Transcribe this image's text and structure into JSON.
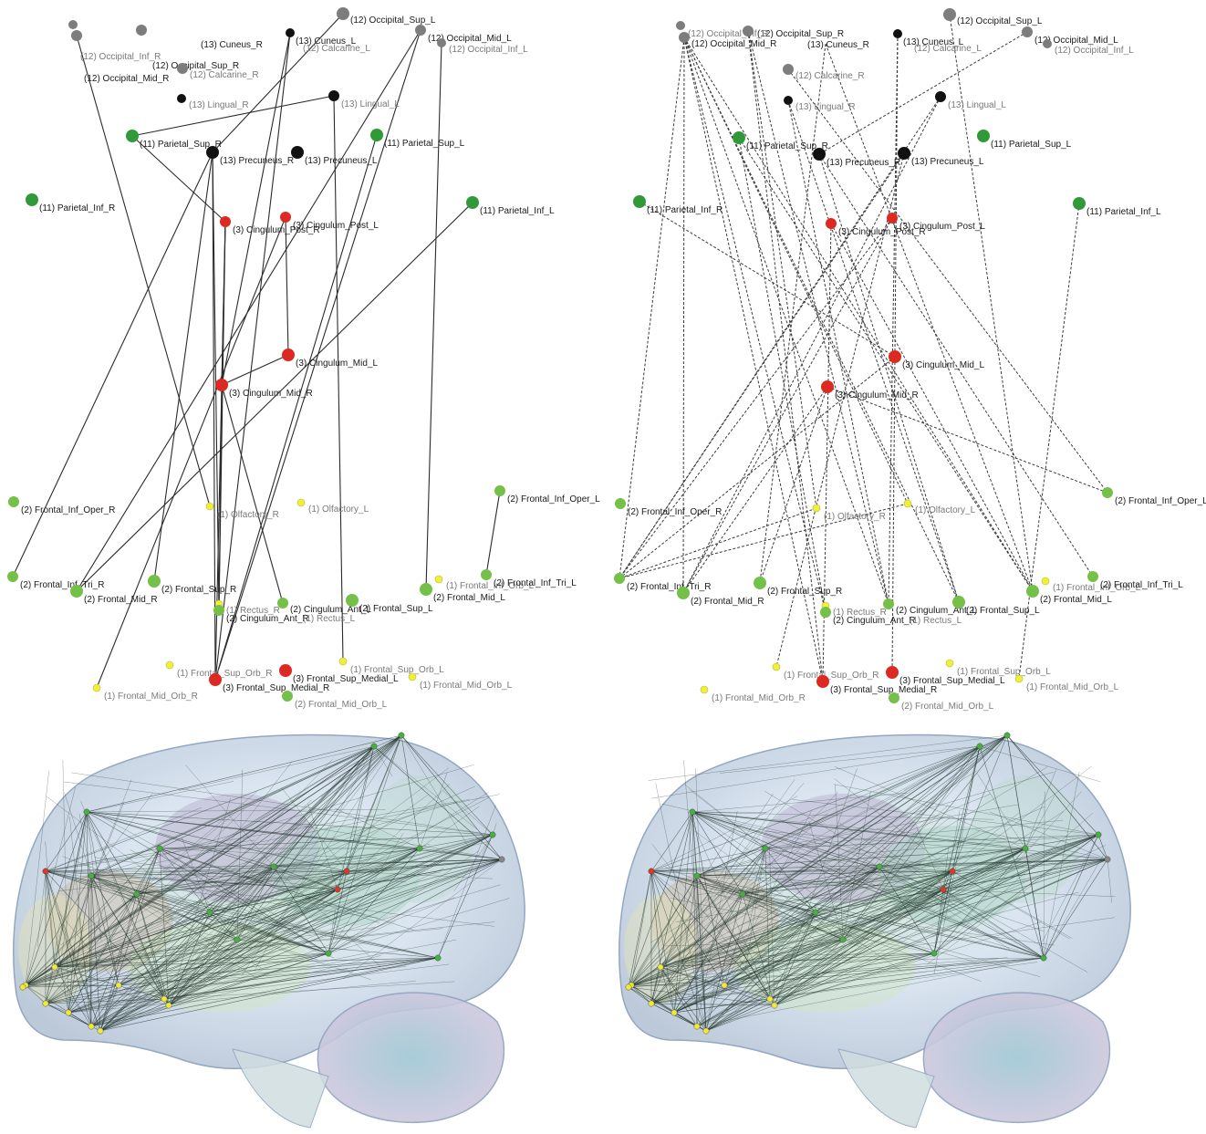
{
  "colors": {
    "occipital": "#7d7d7d",
    "cuneus": "#111111",
    "parietal": "#2f9a37",
    "cingulum": "#dc2a22",
    "frontal": "#74c049",
    "olfactory": "#f2ef3a",
    "edge_solid": "#2b2b2b",
    "edge_dashed": "#3b3b3b"
  },
  "panels": [
    {
      "name": "top-left",
      "edge_style": "solid",
      "nodes": [
        {
          "id": "ocsupR",
          "label": "(12) Occipital_Sup_R",
          "group": "occipital",
          "r": 6,
          "faded": false
        },
        {
          "id": "ocmidR",
          "label": "(12) Occipital_Mid_R",
          "group": "occipital",
          "r": 6,
          "faded": false
        },
        {
          "id": "ocinfR",
          "label": "(12) Occipital_Inf_R",
          "group": "occipital",
          "r": 5,
          "faded": true
        },
        {
          "id": "cunR",
          "label": "(13) Cuneus_R",
          "group": "cuneus",
          "r": 0,
          "faded": false
        },
        {
          "id": "cunL",
          "label": "(13) Cuneus_L",
          "group": "cuneus",
          "r": 5,
          "faded": false
        },
        {
          "id": "calcL",
          "label": "(12) Calcarine_L",
          "group": "occipital",
          "r": 0,
          "faded": true
        },
        {
          "id": "calcR",
          "label": "(12) Calcarine_R",
          "group": "occipital",
          "r": 6,
          "faded": true
        },
        {
          "id": "ocsupL",
          "label": "(12) Occipital_Sup_L",
          "group": "occipital",
          "r": 7,
          "faded": false
        },
        {
          "id": "ocmidL",
          "label": "(12) Occipital_Mid_L",
          "group": "occipital",
          "r": 6,
          "faded": false
        },
        {
          "id": "ocinfL",
          "label": "(12) Occipital_Inf_L",
          "group": "occipital",
          "r": 5,
          "faded": true
        },
        {
          "id": "lingR",
          "label": "(13) Lingual_R",
          "group": "cuneus",
          "r": 5,
          "faded": true
        },
        {
          "id": "lingL",
          "label": "(13) Lingual_L",
          "group": "cuneus",
          "r": 6,
          "faded": true
        },
        {
          "id": "parsupR",
          "label": "(11) Parietal_Sup_R",
          "group": "parietal",
          "r": 7,
          "faded": false
        },
        {
          "id": "precR",
          "label": "(13) Precuneus_R",
          "group": "cuneus",
          "r": 7,
          "faded": false
        },
        {
          "id": "precL",
          "label": "(13) Precuneus_L",
          "group": "cuneus",
          "r": 7,
          "faded": false
        },
        {
          "id": "parsupL",
          "label": "(11) Parietal_Sup_L",
          "group": "parietal",
          "r": 7,
          "faded": false
        },
        {
          "id": "parinfR",
          "label": "(11) Parietal_Inf_R",
          "group": "parietal",
          "r": 7,
          "faded": false
        },
        {
          "id": "parinfL",
          "label": "(11) Parietal_Inf_L",
          "group": "parietal",
          "r": 7,
          "faded": false
        },
        {
          "id": "cpR",
          "label": "(3) Cingulum_Post_R",
          "group": "cingulum",
          "r": 6,
          "faded": false
        },
        {
          "id": "cpL",
          "label": "(3) Cingulum_Post_L",
          "group": "cingulum",
          "r": 6,
          "faded": false
        },
        {
          "id": "cmL",
          "label": "(3) Cingulum_Mid_L",
          "group": "cingulum",
          "r": 7,
          "faded": false
        },
        {
          "id": "cmR",
          "label": "(3) Cingulum_Mid_R",
          "group": "cingulum",
          "r": 7,
          "faded": false
        },
        {
          "id": "fioR",
          "label": "(2) Frontal_Inf_Oper_R",
          "group": "frontal",
          "r": 6,
          "faded": false
        },
        {
          "id": "olfR",
          "label": "(1) Olfactory_R",
          "group": "olfactory",
          "r": 4,
          "faded": true
        },
        {
          "id": "olfL",
          "label": "(1) Olfactory_L",
          "group": "olfactory",
          "r": 4,
          "faded": true
        },
        {
          "id": "fioL",
          "label": "(2) Frontal_Inf_Oper_L",
          "group": "frontal",
          "r": 6,
          "faded": false
        },
        {
          "id": "fitR",
          "label": "(2) Frontal_Inf_Tri_R",
          "group": "frontal",
          "r": 6,
          "faded": false
        },
        {
          "id": "fmR",
          "label": "(2) Frontal_Mid_R",
          "group": "frontal",
          "r": 7,
          "faded": false
        },
        {
          "id": "fsR",
          "label": "(2) Frontal_Sup_R",
          "group": "frontal",
          "r": 7,
          "faded": false
        },
        {
          "id": "recR",
          "label": "(1) Rectus_R",
          "group": "olfactory",
          "r": 4,
          "faded": true
        },
        {
          "id": "caL",
          "label": "(2) Cingulum_Ant_L",
          "group": "frontal",
          "r": 6,
          "faded": false
        },
        {
          "id": "caR",
          "label": "(2) Cingulum_Ant_R",
          "group": "frontal",
          "r": 6,
          "faded": false
        },
        {
          "id": "recL",
          "label": "(1) Rectus_L",
          "group": "olfactory",
          "r": 0,
          "faded": true
        },
        {
          "id": "fsL",
          "label": "(2) Frontal_Sup_L",
          "group": "frontal",
          "r": 7,
          "faded": false
        },
        {
          "id": "fmL",
          "label": "(2) Frontal_Mid_L",
          "group": "frontal",
          "r": 7,
          "faded": false
        },
        {
          "id": "fioL2",
          "label": "(1) Frontal_Inf_Orb_L",
          "group": "olfactory",
          "r": 4,
          "faded": true
        },
        {
          "id": "fitL",
          "label": "(2) Frontal_Inf_Tri_L",
          "group": "frontal",
          "r": 6,
          "faded": false
        },
        {
          "id": "fsoR",
          "label": "(1) Frontal_Sup_Orb_R",
          "group": "olfactory",
          "r": 4,
          "faded": true
        },
        {
          "id": "fsoL",
          "label": "(1) Frontal_Sup_Orb_L",
          "group": "olfactory",
          "r": 4,
          "faded": true
        },
        {
          "id": "fsmL",
          "label": "(3) Frontal_Sup_Medial_L",
          "group": "cingulum",
          "r": 7,
          "faded": false
        },
        {
          "id": "fsmR",
          "label": "(3) Frontal_Sup_Medial_R",
          "group": "cingulum",
          "r": 7,
          "faded": false
        },
        {
          "id": "fmoR",
          "label": "(1) Frontal_Mid_Orb_R",
          "group": "olfactory",
          "r": 4,
          "faded": true
        },
        {
          "id": "fmoL",
          "label": "(1) Frontal_Mid_Orb_L",
          "group": "olfactory",
          "r": 4,
          "faded": true
        },
        {
          "id": "fmo2L",
          "label": "(2) Frontal_Mid_Orb_L",
          "group": "frontal",
          "r": 6,
          "faded": true
        }
      ],
      "edges": [
        [
          "ocmidR",
          "olfR"
        ],
        [
          "ocsupL",
          "precR"
        ],
        [
          "lingL",
          "parsupR"
        ],
        [
          "parsupR",
          "cpR"
        ],
        [
          "cunL",
          "cmR"
        ],
        [
          "cunL",
          "fsmR"
        ],
        [
          "ocmidL",
          "fsmR"
        ],
        [
          "ocmidL",
          "fmR"
        ],
        [
          "ocinfL",
          "fmL"
        ],
        [
          "precR",
          "fsmR"
        ],
        [
          "precR",
          "fitR"
        ],
        [
          "precR",
          "fsR"
        ],
        [
          "precR",
          "caR"
        ],
        [
          "parsupL",
          "fsmR"
        ],
        [
          "parinfL",
          "fmR"
        ],
        [
          "cmL",
          "cpL"
        ],
        [
          "cmR",
          "cmL"
        ],
        [
          "cmR",
          "caL"
        ],
        [
          "cpR",
          "caR"
        ],
        [
          "cpR",
          "fsmR"
        ],
        [
          "cmR",
          "caR"
        ],
        [
          "lingL",
          "fsoL"
        ],
        [
          "fioL",
          "fitL"
        ],
        [
          "cpL",
          "fmoR"
        ],
        [
          "cpR",
          "cmR"
        ]
      ]
    },
    {
      "name": "top-right",
      "edge_style": "dashed",
      "nodes": [
        {
          "id": "ocsupR",
          "label": "(12) Occipital_Sup_R",
          "group": "occipital",
          "r": 6,
          "faded": false
        },
        {
          "id": "ocmidR",
          "label": "(12) Occipital_Mid_R",
          "group": "occipital",
          "r": 6,
          "faded": false
        },
        {
          "id": "ocinfR",
          "label": "(12) Occipital_Inf_R",
          "group": "occipital",
          "r": 5,
          "faded": true
        },
        {
          "id": "cunR",
          "label": "(13) Cuneus_R",
          "group": "cuneus",
          "r": 0,
          "faded": false
        },
        {
          "id": "cunL",
          "label": "(13) Cuneus_L",
          "group": "cuneus",
          "r": 5,
          "faded": false
        },
        {
          "id": "calcL",
          "label": "(12) Calcarine_L",
          "group": "occipital",
          "r": 0,
          "faded": true
        },
        {
          "id": "calcR",
          "label": "(12) Calcarine_R",
          "group": "occipital",
          "r": 6,
          "faded": true
        },
        {
          "id": "ocsupL",
          "label": "(12) Occipital_Sup_L",
          "group": "occipital",
          "r": 7,
          "faded": false
        },
        {
          "id": "ocmidL",
          "label": "(12) Occipital_Mid_L",
          "group": "occipital",
          "r": 6,
          "faded": false
        },
        {
          "id": "ocinfL",
          "label": "(12) Occipital_Inf_L",
          "group": "occipital",
          "r": 5,
          "faded": true
        },
        {
          "id": "lingR",
          "label": "(13) Lingual_R",
          "group": "cuneus",
          "r": 5,
          "faded": true
        },
        {
          "id": "lingL",
          "label": "(13) Lingual_L",
          "group": "cuneus",
          "r": 6,
          "faded": true
        },
        {
          "id": "parsupR",
          "label": "(11) Parietal_Sup_R",
          "group": "parietal",
          "r": 7,
          "faded": false
        },
        {
          "id": "precR",
          "label": "(13) Precuneus_R",
          "group": "cuneus",
          "r": 7,
          "faded": false
        },
        {
          "id": "precL",
          "label": "(13) Precuneus_L",
          "group": "cuneus",
          "r": 7,
          "faded": false
        },
        {
          "id": "parsupL",
          "label": "(11) Parietal_Sup_L",
          "group": "parietal",
          "r": 7,
          "faded": false
        },
        {
          "id": "parinfR",
          "label": "(11) Parietal_Inf_R",
          "group": "parietal",
          "r": 7,
          "faded": false
        },
        {
          "id": "parinfL",
          "label": "(11) Parietal_Inf_L",
          "group": "parietal",
          "r": 7,
          "faded": false
        },
        {
          "id": "cpR",
          "label": "(3) Cingulum_Post_R",
          "group": "cingulum",
          "r": 6,
          "faded": false
        },
        {
          "id": "cpL",
          "label": "(3) Cingulum_Post_L",
          "group": "cingulum",
          "r": 6,
          "faded": false
        },
        {
          "id": "cmL",
          "label": "(3) Cingulum_Mid_L",
          "group": "cingulum",
          "r": 7,
          "faded": false
        },
        {
          "id": "cmR",
          "label": "(3) Cingulum_Mid_R",
          "group": "cingulum",
          "r": 7,
          "faded": false
        },
        {
          "id": "fioR",
          "label": "(2) Frontal_Inf_Oper_R",
          "group": "frontal",
          "r": 6,
          "faded": false
        },
        {
          "id": "olfR",
          "label": "(1) Olfactory_R",
          "group": "olfactory",
          "r": 4,
          "faded": true
        },
        {
          "id": "olfL",
          "label": "(1) Olfactory_L",
          "group": "olfactory",
          "r": 4,
          "faded": true
        },
        {
          "id": "fioL",
          "label": "(2) Frontal_Inf_Oper_L",
          "group": "frontal",
          "r": 6,
          "faded": false
        },
        {
          "id": "fitR",
          "label": "(2) Frontal_Inf_Tri_R",
          "group": "frontal",
          "r": 6,
          "faded": false
        },
        {
          "id": "fmR",
          "label": "(2) Frontal_Mid_R",
          "group": "frontal",
          "r": 7,
          "faded": false
        },
        {
          "id": "fsR",
          "label": "(2) Frontal_Sup_R",
          "group": "frontal",
          "r": 7,
          "faded": false
        },
        {
          "id": "recR",
          "label": "(1) Rectus_R",
          "group": "olfactory",
          "r": 4,
          "faded": true
        },
        {
          "id": "caL",
          "label": "(2) Cingulum_Ant_L",
          "group": "frontal",
          "r": 6,
          "faded": false
        },
        {
          "id": "caR",
          "label": "(2) Cingulum_Ant_R",
          "group": "frontal",
          "r": 6,
          "faded": false
        },
        {
          "id": "recL",
          "label": "(1) Rectus_L",
          "group": "olfactory",
          "r": 0,
          "faded": true
        },
        {
          "id": "fsL",
          "label": "(2) Frontal_Sup_L",
          "group": "frontal",
          "r": 7,
          "faded": false
        },
        {
          "id": "fmL",
          "label": "(2) Frontal_Mid_L",
          "group": "frontal",
          "r": 7,
          "faded": false
        },
        {
          "id": "fioL2",
          "label": "(1) Frontal_Inf_Orb_L",
          "group": "olfactory",
          "r": 4,
          "faded": true
        },
        {
          "id": "fitL",
          "label": "(2) Frontal_Inf_Tri_L",
          "group": "frontal",
          "r": 6,
          "faded": false
        },
        {
          "id": "fsoR",
          "label": "(1) Frontal_Sup_Orb_R",
          "group": "olfactory",
          "r": 4,
          "faded": true
        },
        {
          "id": "fsoL",
          "label": "(1) Frontal_Sup_Orb_L",
          "group": "olfactory",
          "r": 4,
          "faded": true
        },
        {
          "id": "fsmL",
          "label": "(3) Frontal_Sup_Medial_L",
          "group": "cingulum",
          "r": 7,
          "faded": false
        },
        {
          "id": "fsmR",
          "label": "(3) Frontal_Sup_Medial_R",
          "group": "cingulum",
          "r": 7,
          "faded": false
        },
        {
          "id": "fmoR",
          "label": "(1) Frontal_Mid_Orb_R",
          "group": "olfactory",
          "r": 4,
          "faded": true
        },
        {
          "id": "fmoL",
          "label": "(1) Frontal_Mid_Orb_L",
          "group": "olfactory",
          "r": 4,
          "faded": true
        },
        {
          "id": "fmo2L",
          "label": "(2) Frontal_Mid_Orb_L",
          "group": "frontal",
          "r": 6,
          "faded": true
        }
      ],
      "edges": [
        [
          "ocmidR",
          "fitR"
        ],
        [
          "ocmidR",
          "fmR"
        ],
        [
          "ocmidR",
          "caR"
        ],
        [
          "ocmidR",
          "caL"
        ],
        [
          "ocmidR",
          "fsmR"
        ],
        [
          "ocmidR",
          "fsL"
        ],
        [
          "ocmidR",
          "fmL"
        ],
        [
          "ocmidR",
          "olfL"
        ],
        [
          "ocsupR",
          "fsmR"
        ],
        [
          "ocsupR",
          "olfR"
        ],
        [
          "ocsupR",
          "caL"
        ],
        [
          "cunR",
          "fsR"
        ],
        [
          "cunR",
          "fmL"
        ],
        [
          "cunL",
          "caL"
        ],
        [
          "cunL",
          "fsmL"
        ],
        [
          "ocsupL",
          "fmL"
        ],
        [
          "ocmidL",
          "precR"
        ],
        [
          "lingR",
          "caL"
        ],
        [
          "lingR",
          "fsL"
        ],
        [
          "lingL",
          "fitR"
        ],
        [
          "lingL",
          "fmR"
        ],
        [
          "parsupR",
          "caR"
        ],
        [
          "parsupR",
          "fmL"
        ],
        [
          "precR",
          "fitL"
        ],
        [
          "precR",
          "fsL"
        ],
        [
          "precL",
          "fitR"
        ],
        [
          "precL",
          "fsoR"
        ],
        [
          "calcR",
          "fioL"
        ],
        [
          "parinfR",
          "cmL"
        ],
        [
          "parinfL",
          "fmoL"
        ],
        [
          "cpR",
          "fsmR"
        ],
        [
          "cpR",
          "fmL"
        ],
        [
          "cpL",
          "fmR"
        ],
        [
          "cpL",
          "fitR"
        ],
        [
          "cmR",
          "fioL"
        ],
        [
          "cmL",
          "fitR"
        ],
        [
          "cmR",
          "fsR"
        ],
        [
          "olfR",
          "fitR"
        ],
        [
          "olfL",
          "fitR"
        ],
        [
          "cmR",
          "fmR"
        ]
      ]
    }
  ],
  "brain_views": [
    {
      "name": "brain-left"
    },
    {
      "name": "brain-right"
    }
  ]
}
